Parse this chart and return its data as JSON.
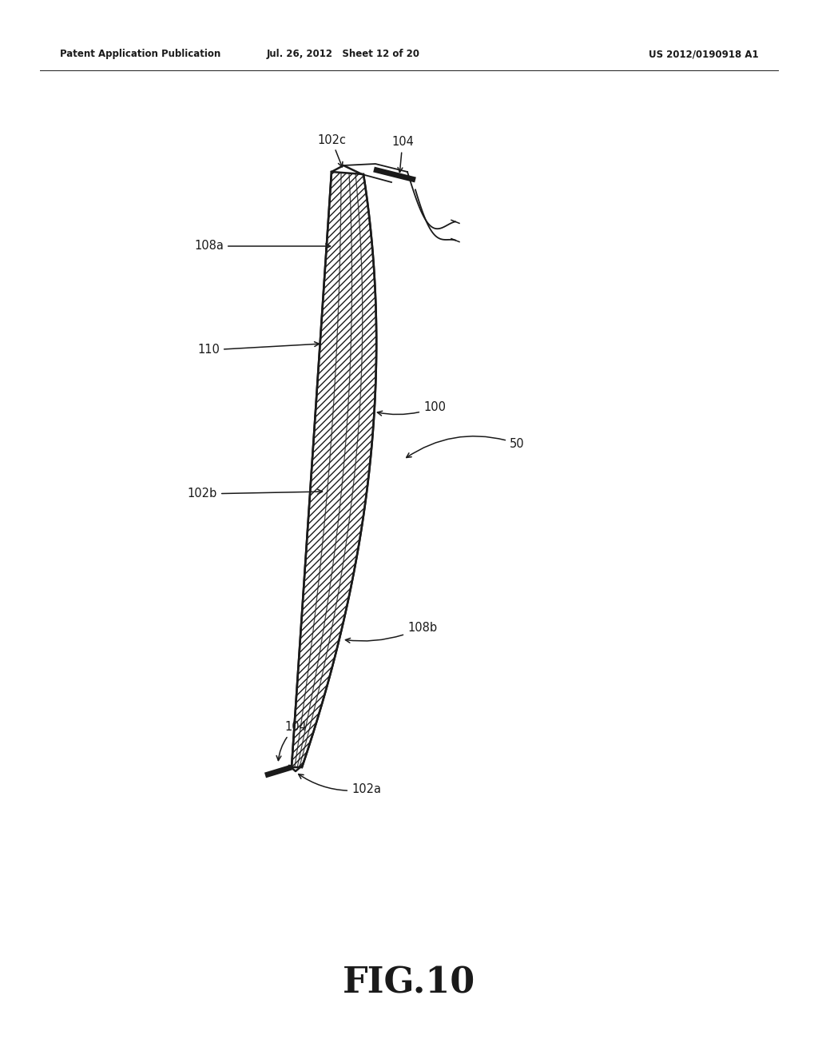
{
  "bg_color": "#ffffff",
  "header_left": "Patent Application Publication",
  "header_mid": "Jul. 26, 2012   Sheet 12 of 20",
  "header_right": "US 2012/0190918 A1",
  "fig_label": "FIG.10",
  "line_color": "#1a1a1a",
  "label_fs": 10.5
}
